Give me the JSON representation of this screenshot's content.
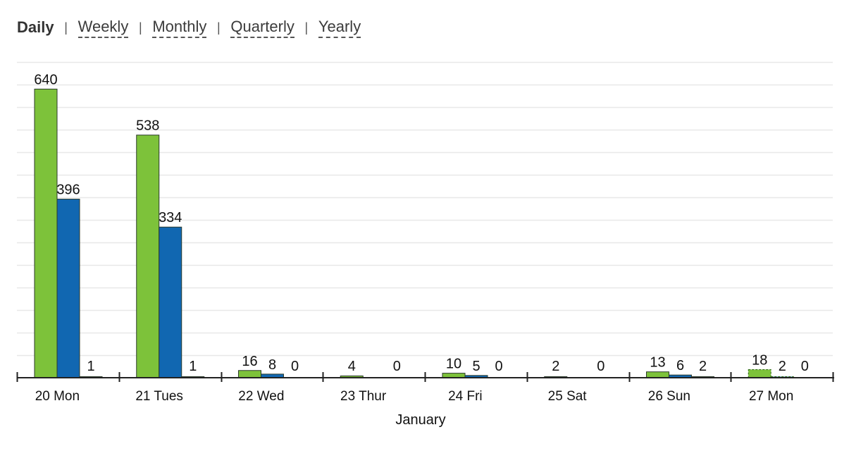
{
  "tabs": {
    "items": [
      {
        "label": "Daily",
        "active": true
      },
      {
        "label": "Weekly",
        "active": false
      },
      {
        "label": "Monthly",
        "active": false
      },
      {
        "label": "Quarterly",
        "active": false
      },
      {
        "label": "Yearly",
        "active": false
      }
    ],
    "separator": "|"
  },
  "colors": {
    "series_1": "#7dc23a",
    "series_2": "#1167b1",
    "series_3": "#1f6e9e",
    "grid": "#e8e8e8",
    "axis": "#222222"
  },
  "chart_data": {
    "type": "bar",
    "categories": [
      "20 Mon",
      "21 Tues",
      "22 Wed",
      "23 Thur",
      "24 Fri",
      "25 Sat",
      "26 Sun",
      "27 Mon"
    ],
    "series": [
      {
        "values": [
          640,
          538,
          16,
          4,
          10,
          2,
          13,
          18
        ]
      },
      {
        "values": [
          396,
          334,
          8,
          null,
          5,
          null,
          6,
          2
        ]
      },
      {
        "values": [
          1,
          1,
          0,
          0,
          0,
          0,
          2,
          0
        ]
      }
    ],
    "label_values": [
      [
        "640",
        "396",
        "1"
      ],
      [
        "538",
        "334",
        "1"
      ],
      [
        "16",
        "8",
        "0"
      ],
      [
        "4",
        "",
        "0"
      ],
      [
        "10",
        "5",
        "0"
      ],
      [
        "2",
        "",
        "0"
      ],
      [
        "13",
        "6",
        "2"
      ],
      [
        "18",
        "2",
        "0"
      ]
    ],
    "partial_category_index": 7,
    "xlabel": "January",
    "ylim": [
      0,
      700
    ],
    "grid": true,
    "legend": "none"
  }
}
